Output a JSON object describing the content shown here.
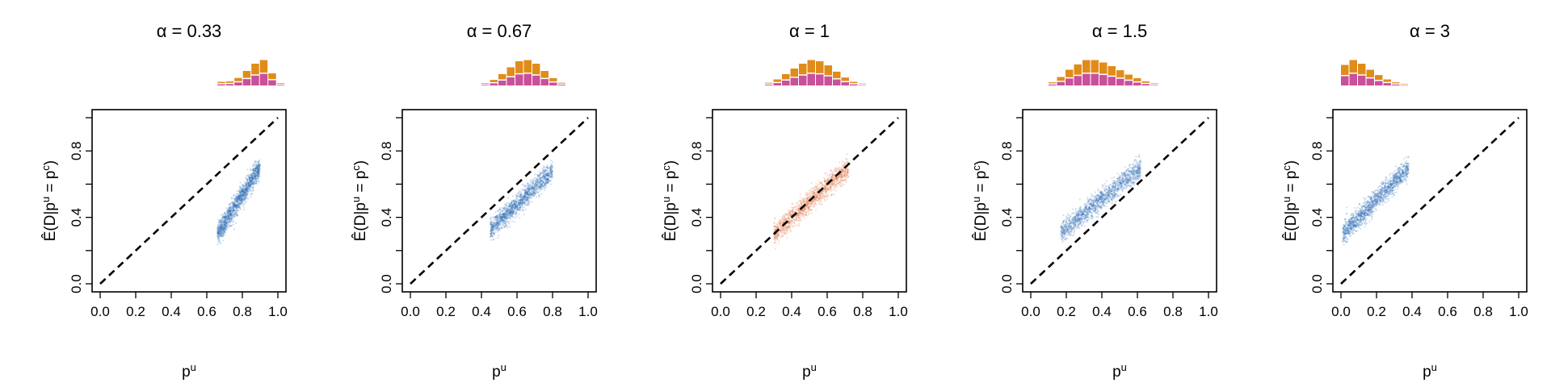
{
  "colors": {
    "blue": "#2f6db5",
    "orange_points": "#e0784a",
    "hist_top": "#e08c1a",
    "hist_bottom": "#c9509a",
    "axis": "#000000"
  },
  "shared": {
    "xlabel": "p",
    "xlabel_sup": "u",
    "ylabel": "Ê(D|p",
    "ylabel_sup1": "u",
    "ylabel_mid": " = p",
    "ylabel_sup2": "c",
    "ylabel_end": ")",
    "xticks": [
      "0.0",
      "0.2",
      "0.4",
      "0.6",
      "0.8",
      "1.0"
    ],
    "yticks": [
      "0.0",
      "0.4",
      "0.8"
    ],
    "xlim": [
      0,
      1
    ],
    "ylim": [
      0,
      1
    ],
    "reference_line": "y = x, dashed"
  },
  "chart_data": [
    {
      "type": "scatter",
      "title": "α = 0.33",
      "point_color": "blue",
      "x_range": [
        0.66,
        0.9
      ],
      "y_at_xmin": 0.3,
      "y_at_xmax": 0.7,
      "hist_bins": [
        0.1,
        0.12,
        0.26,
        0.55,
        0.85,
        1.0,
        0.45,
        0.05
      ],
      "hist_split": 0.48,
      "hist_x_start": 0.66
    },
    {
      "type": "scatter",
      "title": "α = 0.67",
      "point_color": "blue",
      "x_range": [
        0.45,
        0.8
      ],
      "y_at_xmin": 0.33,
      "y_at_xmax": 0.68,
      "hist_bins": [
        0.05,
        0.18,
        0.42,
        0.7,
        0.95,
        1.0,
        0.85,
        0.55,
        0.25,
        0.06
      ],
      "hist_split": 0.48,
      "hist_x_start": 0.4
    },
    {
      "type": "scatter",
      "title": "α = 1",
      "point_color": "orange_points",
      "x_range": [
        0.3,
        0.72
      ],
      "y_at_xmin": 0.3,
      "y_at_xmax": 0.7,
      "hist_bins": [
        0.06,
        0.2,
        0.42,
        0.65,
        0.85,
        1.0,
        0.95,
        0.78,
        0.52,
        0.28,
        0.1,
        0.03
      ],
      "hist_split": 0.48,
      "hist_x_start": 0.25
    },
    {
      "type": "scatter",
      "title": "α = 1.5",
      "point_color": "blue",
      "x_range": [
        0.17,
        0.62
      ],
      "y_at_xmin": 0.31,
      "y_at_xmax": 0.7,
      "hist_bins": [
        0.08,
        0.3,
        0.6,
        0.82,
        1.0,
        1.0,
        0.9,
        0.75,
        0.58,
        0.4,
        0.25,
        0.12,
        0.04
      ],
      "hist_split": 0.48,
      "hist_x_start": 0.1
    },
    {
      "type": "scatter",
      "title": "α = 3",
      "point_color": "blue",
      "x_range": [
        0.01,
        0.38
      ],
      "y_at_xmin": 0.3,
      "y_at_xmax": 0.7,
      "hist_bins": [
        0.8,
        1.0,
        0.85,
        0.6,
        0.38,
        0.2,
        0.08,
        0.02
      ],
      "hist_split": 0.48,
      "hist_x_start": 0.0
    }
  ]
}
